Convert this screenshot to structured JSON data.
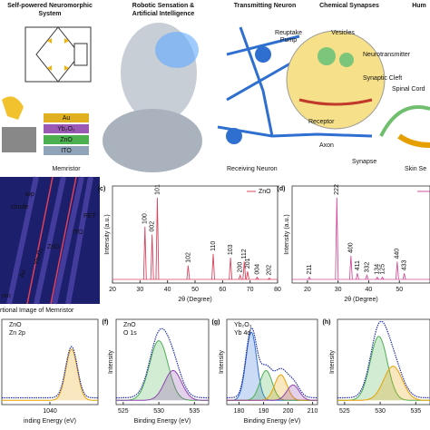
{
  "illustration": {
    "system": [
      "Self-powered Neuromorphic",
      "System"
    ],
    "robot": [
      "Robotic Sensation &",
      "Artificial Intelligence"
    ],
    "transmitting": "Transmitting Neuron",
    "chemical": "Chemical Synapses",
    "human": "Hum",
    "reuptake": [
      "Reuptake",
      "Pump"
    ],
    "vesicles": "Vesicles",
    "neurotransmitter": "Neurotransmitter",
    "cleft": "Synaptic Cleft",
    "receptor": "Receptor",
    "spinal": "Spinal Cord",
    "axon": "Axon",
    "synapse": "Synapse",
    "receiving": "Receiving Neuron",
    "skin": "Skin Se",
    "layers": [
      "Au",
      "Yb₂O₃",
      "ZnO",
      "ITO"
    ],
    "memristor": "Memristor"
  },
  "sem": {
    "top": "top",
    "electrode": "ctrode",
    "zno": "ZnO",
    "ito": "ITO",
    "pet": "PET",
    "yb": "Yb₂O₃",
    "au": "Au",
    "scale": "nm",
    "caption": "rtional Image of Memristor"
  },
  "chart_data": [
    {
      "type": "line",
      "panel": "(c)",
      "legend": "ZnO",
      "color": "#d8455f",
      "xlabel": "2θ (Degree)",
      "ylabel": "Intensity (a.u.)",
      "xlim": [
        20,
        80
      ],
      "xticks": [
        20,
        30,
        40,
        50,
        60,
        70,
        80
      ],
      "ylim": [
        0,
        100
      ],
      "x": [
        31.8,
        34.4,
        36.3,
        47.5,
        56.6,
        62.9,
        66.4,
        67.9,
        69.1,
        72.6,
        77.0
      ],
      "values": [
        58,
        50,
        88,
        18,
        30,
        26,
        8,
        22,
        12,
        6,
        5
      ],
      "peak_labels": [
        "100",
        "002",
        "101",
        "102",
        "110",
        "103",
        "200",
        "112",
        "201",
        "004",
        "202"
      ]
    },
    {
      "type": "line",
      "panel": "(d)",
      "color": "#d0509a",
      "xlabel": "2θ (Degree)",
      "ylabel": "Intensity (a.u.)",
      "xlim": [
        15,
        60
      ],
      "xticks": [
        20,
        30,
        40,
        50
      ],
      "ylim": [
        0,
        100
      ],
      "x": [
        20.6,
        29.6,
        34.2,
        36.3,
        39.4,
        42.8,
        44.5,
        49.3,
        51.6
      ],
      "values": [
        6,
        88,
        28,
        10,
        8,
        6,
        6,
        22,
        10
      ],
      "peak_labels": [
        "211",
        "222",
        "400",
        "411",
        "332",
        "134",
        "125",
        "440",
        "433"
      ]
    },
    {
      "type": "line",
      "material": "ZnO",
      "level": "Zn 2p",
      "xlabel": "inding Energy (eV)",
      "xlim": [
        1030,
        1050
      ],
      "xticks": [
        1040
      ],
      "ylim": [
        0,
        100
      ],
      "components": [
        {
          "color": "#e8a000",
          "center": 1044.5,
          "height": 60,
          "width": 1.2
        }
      ]
    },
    {
      "type": "line",
      "panel": "(f)",
      "material": "ZnO",
      "level": "O 1s",
      "xlabel": "Binding Energy (eV)",
      "ylabel": "Intensity",
      "xlim": [
        524,
        537
      ],
      "xticks": [
        525,
        530,
        535
      ],
      "ylim": [
        0,
        100
      ],
      "components": [
        {
          "color": "#4caf50",
          "center": 530,
          "height": 70,
          "width": 1.3
        },
        {
          "color": "#8e44ad",
          "center": 532,
          "height": 35,
          "width": 1.2
        }
      ]
    },
    {
      "type": "line",
      "panel": "(g)",
      "material": "Yb₂O₃",
      "level": "Yb 4d",
      "xlabel": "Binding Energy (eV)",
      "ylabel": "Intensity",
      "xlim": [
        175,
        212
      ],
      "xticks": [
        180,
        190,
        200,
        210
      ],
      "ylim": [
        0,
        100
      ],
      "components": [
        {
          "color": "#2e6fd8",
          "center": 185,
          "height": 80,
          "width": 2.2
        },
        {
          "color": "#4caf50",
          "center": 191,
          "height": 35,
          "width": 2.5
        },
        {
          "color": "#e8a000",
          "center": 197,
          "height": 30,
          "width": 2.5
        },
        {
          "color": "#8e44ad",
          "center": 202,
          "height": 18,
          "width": 2.5
        }
      ]
    },
    {
      "type": "line",
      "panel": "(h)",
      "ylabel": "Intensity",
      "xlim": [
        524,
        537
      ],
      "xticks": [
        525,
        530,
        535
      ],
      "ylim": [
        0,
        100
      ],
      "components": [
        {
          "color": "#4caf50",
          "center": 529.8,
          "height": 75,
          "width": 1.2
        },
        {
          "color": "#e8a000",
          "center": 531.8,
          "height": 40,
          "width": 1.3
        }
      ]
    }
  ]
}
